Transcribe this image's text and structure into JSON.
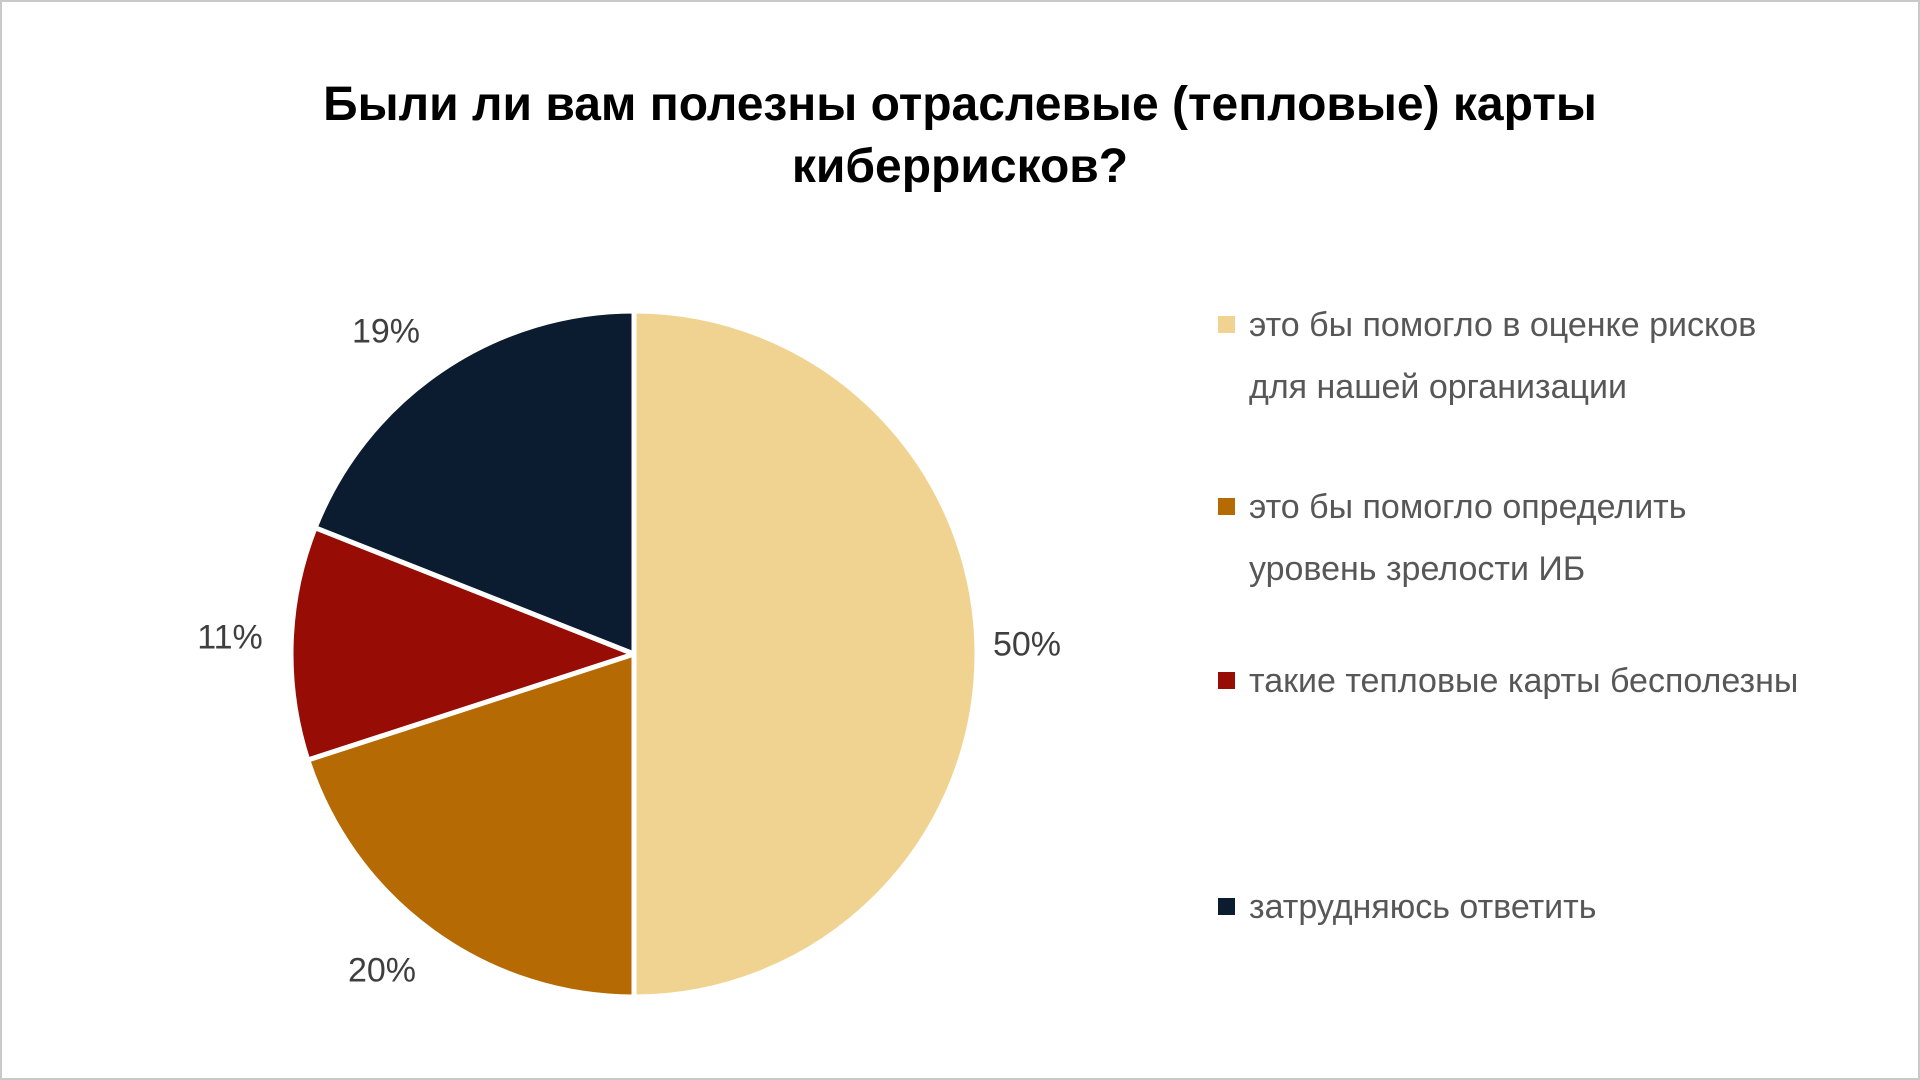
{
  "chart_data": {
    "type": "pie",
    "title": "Были ли вам полезны отраслевые (тепловые) карты киберрисков?",
    "unit": "%",
    "total": 100,
    "legend_position": "right",
    "start_angle_deg": 0,
    "direction": "clockwise",
    "slices": [
      {
        "value": 50,
        "pct_label": "50%",
        "color": "#F0D391",
        "label": "это бы помогло в оценке рисков для нашей организации",
        "label_lines": [
          "это бы помогло в оценке рисков",
          "для нашей организации"
        ]
      },
      {
        "value": 20,
        "pct_label": "20%",
        "color": "#B56A04",
        "label": "это бы помогло определить уровень зрелости ИБ",
        "label_lines": [
          "это бы помогло определить",
          "уровень зрелости ИБ"
        ]
      },
      {
        "value": 11,
        "pct_label": "11%",
        "color": "#970C04",
        "label": "такие тепловые карты бесполезны",
        "label_lines": [
          "такие тепловые карты бесполезны"
        ]
      },
      {
        "value": 19,
        "pct_label": "19%",
        "color": "#0B1C30",
        "label": "затрудняюсь ответить",
        "label_lines": [
          "затрудняюсь ответить"
        ]
      }
    ]
  },
  "colors": {
    "background": "#FFFFFF",
    "canvas_border": "#C9C9C9",
    "title_text": "#000000",
    "percent_label_text": "#3F3F3F",
    "legend_text": "#575757",
    "slice_separator": "#FFFFFF"
  }
}
